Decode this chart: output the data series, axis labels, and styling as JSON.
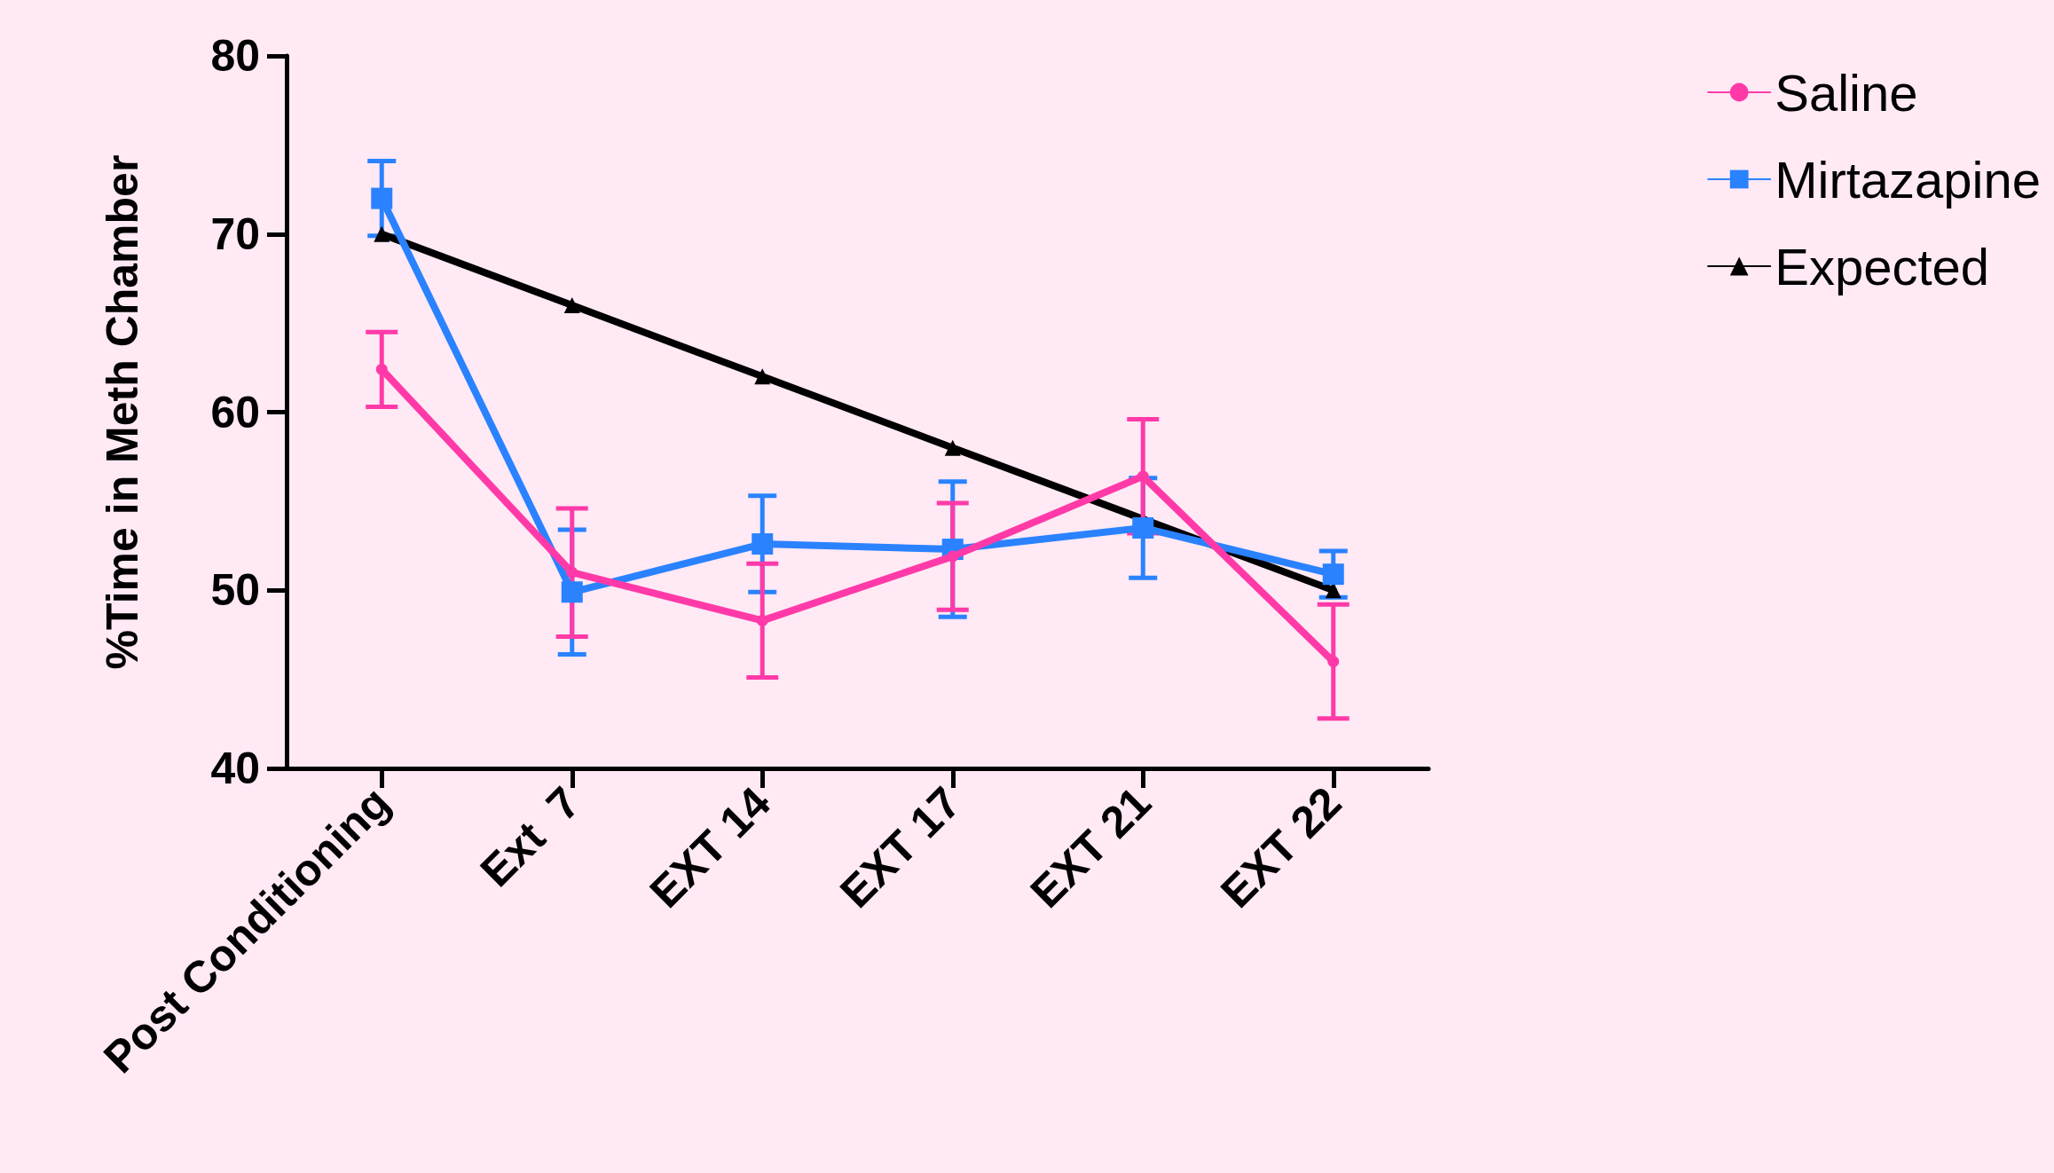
{
  "chart_data": {
    "type": "line",
    "ylabel": "%Time in Meth Chamber",
    "categories": [
      "Post Conditioning",
      "Ext  7",
      "EXT 14",
      "EXT 17",
      "EXT 21",
      "EXT 22"
    ],
    "ylim": [
      40,
      80
    ],
    "yticks": [
      40,
      50,
      60,
      70,
      80
    ],
    "grid": false,
    "legend": "top right",
    "line_style": "solid",
    "series": [
      {
        "name": "Saline",
        "color": "#ff3aa8",
        "marker": "circle",
        "values": [
          62.4,
          51.0,
          48.3,
          51.9,
          56.4,
          46.0
        ],
        "errors": [
          2.1,
          3.6,
          3.2,
          3.0,
          3.2,
          3.2
        ]
      },
      {
        "name": "Mirtazapine",
        "color": "#2a82ff",
        "marker": "square",
        "values": [
          72.0,
          49.9,
          52.6,
          52.3,
          53.5,
          50.9
        ],
        "errors": [
          2.1,
          3.5,
          2.7,
          3.8,
          2.8,
          1.3
        ]
      },
      {
        "name": "Expected",
        "color": "#000000",
        "marker": "triangle",
        "values": [
          70,
          66,
          62,
          58,
          54,
          50
        ]
      }
    ]
  }
}
